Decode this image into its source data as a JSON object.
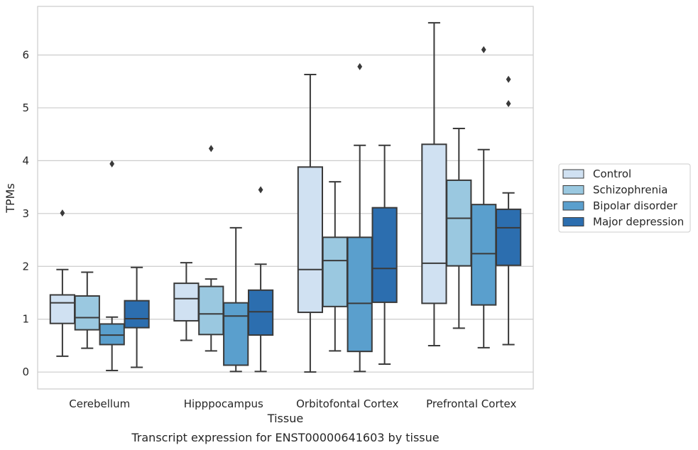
{
  "caption": "Transcript expression for ENST00000641603 by tissue",
  "chart_data": {
    "type": "box",
    "title": "",
    "xlabel": "Tissue",
    "ylabel": "TPMs",
    "ylim": [
      -0.32,
      6.92
    ],
    "yticks": [
      0,
      1,
      2,
      3,
      4,
      5,
      6
    ],
    "ytick_labels": [
      "0",
      "1",
      "2",
      "3",
      "4",
      "5",
      "6"
    ],
    "grid": "horizontal",
    "legend_position": "right",
    "categories": [
      "Cerebellum",
      "Hipppocampus",
      "Orbitofontal Cortex",
      "Prefrontal Cortex"
    ],
    "series": [
      {
        "name": "Control",
        "color": "#d0e1f2",
        "boxes": [
          {
            "whisker_low": 0.3,
            "q1": 0.92,
            "median": 1.31,
            "q3": 1.46,
            "whisker_high": 1.94,
            "outliers": [
              3.01
            ]
          },
          {
            "whisker_low": 0.6,
            "q1": 0.97,
            "median": 1.39,
            "q3": 1.68,
            "whisker_high": 2.07,
            "outliers": []
          },
          {
            "whisker_low": 0.0,
            "q1": 1.13,
            "median": 1.94,
            "q3": 3.88,
            "whisker_high": 5.63,
            "outliers": []
          },
          {
            "whisker_low": 0.5,
            "q1": 1.3,
            "median": 2.06,
            "q3": 4.31,
            "whisker_high": 6.61,
            "outliers": []
          }
        ]
      },
      {
        "name": "Schizophrenia",
        "color": "#9ac8e0",
        "boxes": [
          {
            "whisker_low": 0.45,
            "q1": 0.8,
            "median": 1.03,
            "q3": 1.44,
            "whisker_high": 1.89,
            "outliers": []
          },
          {
            "whisker_low": 0.4,
            "q1": 0.71,
            "median": 1.1,
            "q3": 1.62,
            "whisker_high": 1.76,
            "outliers": [
              4.23
            ]
          },
          {
            "whisker_low": 0.4,
            "q1": 1.24,
            "median": 2.11,
            "q3": 2.55,
            "whisker_high": 3.6,
            "outliers": []
          },
          {
            "whisker_low": 0.83,
            "q1": 2.01,
            "median": 2.91,
            "q3": 3.63,
            "whisker_high": 4.61,
            "outliers": []
          }
        ]
      },
      {
        "name": "Bipolar disorder",
        "color": "#5a9fcd",
        "boxes": [
          {
            "whisker_low": 0.03,
            "q1": 0.52,
            "median": 0.7,
            "q3": 0.91,
            "whisker_high": 1.04,
            "outliers": [
              3.94
            ]
          },
          {
            "whisker_low": 0.01,
            "q1": 0.13,
            "median": 1.06,
            "q3": 1.31,
            "whisker_high": 2.73,
            "outliers": []
          },
          {
            "whisker_low": 0.01,
            "q1": 0.39,
            "median": 1.3,
            "q3": 2.55,
            "whisker_high": 4.29,
            "outliers": [
              5.78
            ]
          },
          {
            "whisker_low": 0.46,
            "q1": 1.27,
            "median": 2.24,
            "q3": 3.17,
            "whisker_high": 4.21,
            "outliers": [
              6.1
            ]
          }
        ]
      },
      {
        "name": "Major depression",
        "color": "#2c6eaf",
        "boxes": [
          {
            "whisker_low": 0.09,
            "q1": 0.84,
            "median": 1.01,
            "q3": 1.35,
            "whisker_high": 1.98,
            "outliers": []
          },
          {
            "whisker_low": 0.01,
            "q1": 0.7,
            "median": 1.14,
            "q3": 1.55,
            "whisker_high": 2.04,
            "outliers": [
              3.45
            ]
          },
          {
            "whisker_low": 0.15,
            "q1": 1.32,
            "median": 1.96,
            "q3": 3.11,
            "whisker_high": 4.29,
            "outliers": []
          },
          {
            "whisker_low": 0.52,
            "q1": 2.02,
            "median": 2.73,
            "q3": 3.08,
            "whisker_high": 3.39,
            "outliers": [
              5.08,
              5.54
            ]
          }
        ]
      }
    ]
  }
}
